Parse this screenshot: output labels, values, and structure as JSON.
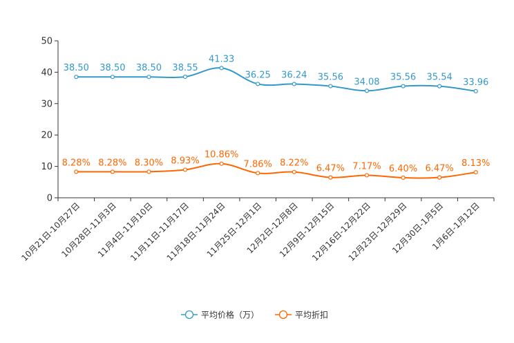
{
  "chart_data": {
    "type": "line",
    "categories": [
      "10月21日-10月27日",
      "10月28日-11月3日",
      "11月4日-11月10日",
      "11月11日-11月17日",
      "11月18日-11月24日",
      "11月25日-12月1日",
      "12月2日-12月8日",
      "12月9日-12月15日",
      "12月16日-12月22日",
      "12月23日-12月29日",
      "12月30日-1月5日",
      "1月6日-1月12日"
    ],
    "series": [
      {
        "name": "平均价格（万）",
        "color": "#3399cc",
        "values": [
          38.5,
          38.5,
          38.5,
          38.55,
          41.33,
          36.25,
          36.24,
          35.56,
          34.08,
          35.56,
          35.54,
          33.96
        ],
        "labels": [
          "38.50",
          "38.50",
          "38.50",
          "38.55",
          "41.33",
          "36.25",
          "36.24",
          "35.56",
          "34.08",
          "35.56",
          "35.54",
          "33.96"
        ]
      },
      {
        "name": "平均折扣",
        "color": "#ff6600",
        "values": [
          8.28,
          8.28,
          8.3,
          8.93,
          10.86,
          7.86,
          8.22,
          6.47,
          7.17,
          6.4,
          6.47,
          8.13
        ],
        "labels": [
          "8.28%",
          "8.28%",
          "8.30%",
          "8.93%",
          "10.86%",
          "7.86%",
          "8.22%",
          "6.47%",
          "7.17%",
          "6.40%",
          "6.47%",
          "8.13%"
        ]
      }
    ],
    "yticks": [
      "0",
      "10",
      "20",
      "30",
      "40",
      "50"
    ],
    "ylim": [
      0,
      50
    ],
    "title": "",
    "xlabel": "",
    "ylabel": "",
    "legend_position": "bottom-center"
  }
}
